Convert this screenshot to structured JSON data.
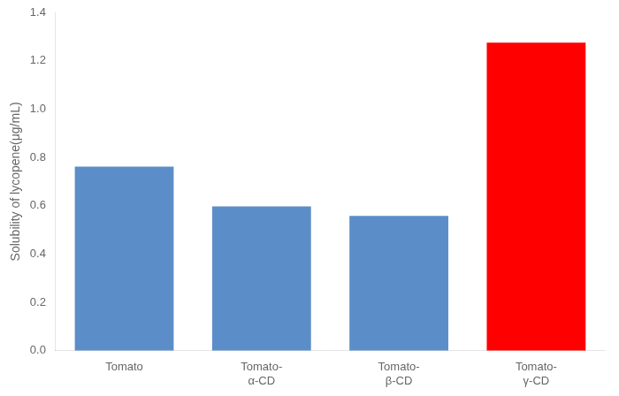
{
  "chart_data": {
    "type": "bar",
    "categories": [
      "Tomato",
      "Tomato-\nα-CD",
      "Tomato-\nβ-CD",
      "Tomato-\nγ-CD"
    ],
    "values": [
      0.762,
      0.597,
      0.558,
      1.275
    ],
    "colors": [
      "#5b8ec8",
      "#5b8ec8",
      "#5b8ec8",
      "#ff0000"
    ],
    "ylabel": "Solubility of lycopene(μg/mL)",
    "ylim": [
      0,
      1.4
    ],
    "yticks": [
      {
        "value": 0,
        "label": "0.0"
      },
      0.2,
      0.4,
      0.6,
      0.8,
      {
        "value": 1.0,
        "label": "1.0"
      },
      1.2,
      1.4
    ],
    "grid": false
  }
}
